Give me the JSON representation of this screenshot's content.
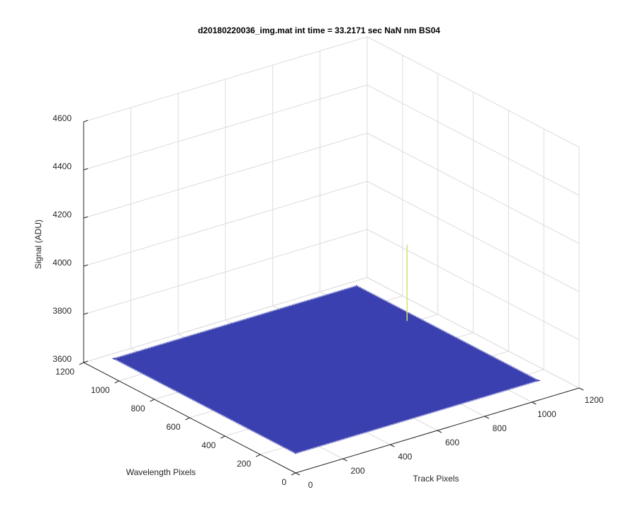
{
  "chart_data": {
    "type": "surface3d",
    "title": "d20180220036_img.mat int time = 33.2171 sec  NaN nm BS04",
    "xlabel": "Track Pixels",
    "ylabel": "Wavelength Pixels",
    "zlabel": "Signal (ADU)",
    "xlim": [
      0,
      1200
    ],
    "ylim": [
      0,
      1200
    ],
    "zlim": [
      3600,
      4600
    ],
    "xticks": [
      0,
      200,
      400,
      600,
      800,
      1000,
      1200
    ],
    "yticks": [
      0,
      200,
      400,
      600,
      800,
      1000,
      1200
    ],
    "zticks": [
      3600,
      3800,
      4000,
      4200,
      4400,
      4600
    ],
    "grid": true,
    "surface": {
      "color": "#3a40b0",
      "x": [
        0,
        1024
      ],
      "y": [
        0,
        1024
      ],
      "z": 3683
    },
    "peak": {
      "color": "#d8e070",
      "x": 980,
      "y": 680,
      "z": 4000
    }
  }
}
